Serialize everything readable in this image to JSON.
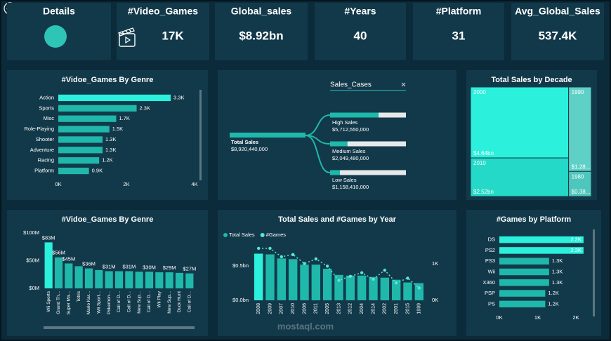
{
  "header": {
    "cards": [
      {
        "title": "Details"
      },
      {
        "title": "#Video_Games",
        "value": "17K"
      },
      {
        "title": "Global_sales",
        "value": "$8.92bn"
      },
      {
        "title": "#Years",
        "value": "40"
      },
      {
        "title": "#Platform",
        "value": "31"
      },
      {
        "title": "Avg_Global_Sales",
        "value": "537.4K"
      }
    ]
  },
  "watermark": "mostaql.com",
  "chart_data": [
    {
      "type": "hbar",
      "title": "#Vidoe_Games By Genre",
      "categories": [
        "Action",
        "Sports",
        "Misc",
        "Role-Playing",
        "Shooter",
        "Adventure",
        "Racing",
        "Platform"
      ],
      "values": [
        3.3,
        2.3,
        1.7,
        1.5,
        1.3,
        1.3,
        1.2,
        0.9
      ],
      "value_labels": [
        "3.3K",
        "2.3K",
        "1.7K",
        "1.5K",
        "1.3K",
        "1.3K",
        "1.2K",
        "0.9K"
      ],
      "colors": [
        "#2af0dc",
        "#1fb8aa",
        "#1fb8aa",
        "#1fb8aa",
        "#1fb8aa",
        "#1fb8aa",
        "#1fb8aa",
        "#1fb8aa"
      ],
      "xlim": [
        0,
        4
      ],
      "xticks": [
        {
          "value": 0,
          "label": "0K"
        },
        {
          "value": 2,
          "label": "2K"
        },
        {
          "value": 4,
          "label": "4K"
        }
      ]
    },
    {
      "type": "decomposition",
      "title": "Sales_Cases",
      "root": {
        "name": "Total Sales",
        "value": 8920440000,
        "value_label": "$8,920,440,000"
      },
      "categories": [
        "High Sales",
        "Medium Sales",
        "Low Sales"
      ],
      "values": [
        5712550000,
        2049480000,
        1158410000
      ],
      "value_labels": [
        "$5,712,550,000",
        "$2,049,480,000",
        "$1,158,410,000"
      ],
      "color": "#1fb8aa"
    },
    {
      "type": "treemap",
      "title": "Total Sales by Decade",
      "categories": [
        "2000",
        "2010",
        "1990",
        "1980"
      ],
      "values": [
        4.64,
        2.52,
        1.28,
        0.38
      ],
      "value_labels": [
        "$4.64bn",
        "$2.52bn",
        "$1.28...",
        "$0.38..."
      ],
      "colors": [
        "#2af0dc",
        "#24d9c7",
        "#5fd0c6",
        "#4fc6bb"
      ]
    },
    {
      "type": "bar",
      "title": "#Vidoe_Games By Genre",
      "categories": [
        "Wii Sports",
        "Grand Th...",
        "Super Ma...",
        "Tetris",
        "Mario Kar...",
        "Wii Sport...",
        "Pokemon...",
        "Call of D...",
        "Call of D...",
        "New Sup...",
        "Call of D...",
        "Wii Play",
        "New Sup...",
        "Duck Hunt",
        "Call of D..."
      ],
      "values": [
        83,
        56,
        45,
        40,
        36,
        33,
        31,
        31,
        31,
        30,
        30,
        29,
        29,
        28,
        27
      ],
      "value_labels": [
        "$83M",
        "$56M",
        "$45M",
        null,
        "$36M",
        null,
        "$31M",
        null,
        "$31M",
        null,
        "$30M",
        null,
        "$29M",
        null,
        "$27M"
      ],
      "colors": [
        "#2af0dc",
        "#1fb8aa",
        "#1fb8aa",
        "#1fb8aa",
        "#1fb8aa",
        "#1fb8aa",
        "#1fb8aa",
        "#1fb8aa",
        "#1fb8aa",
        "#1fb8aa",
        "#1fb8aa",
        "#1fb8aa",
        "#1fb8aa",
        "#1fb8aa",
        "#1fb8aa"
      ],
      "ylim": [
        0,
        100
      ],
      "yticks": [
        {
          "value": 0,
          "label": "$0M"
        },
        {
          "value": 50,
          "label": "$50M"
        },
        {
          "value": 100,
          "label": "$100M"
        }
      ]
    },
    {
      "type": "combo",
      "title": "Total Sales and #Games by Year",
      "categories": [
        "2008",
        "2009",
        "2007",
        "2010",
        "2006",
        "2011",
        "2005",
        "2013",
        "2012",
        "2004",
        "2014",
        "2002",
        "2001",
        "2015",
        "1999"
      ],
      "series": [
        {
          "name": "Total Sales",
          "color": "#1fb8aa",
          "values": [
            0.68,
            0.67,
            0.61,
            0.6,
            0.52,
            0.52,
            0.46,
            0.37,
            0.36,
            0.36,
            0.34,
            0.33,
            0.3,
            0.26,
            0.25
          ]
        },
        {
          "name": "#Games",
          "color": "#5fe3d6",
          "axis": "y2",
          "values": [
            1.43,
            1.43,
            1.2,
            1.26,
            1.01,
            1.14,
            0.94,
            0.55,
            0.66,
            0.76,
            0.58,
            0.83,
            0.48,
            0.61,
            0.34
          ]
        }
      ],
      "ylim": [
        0,
        0.9
      ],
      "yticks": [
        {
          "value": 0,
          "label": "$0.0bn"
        },
        {
          "value": 0.5,
          "label": "$0.5bn"
        }
      ],
      "y2lim": [
        0,
        1.7
      ],
      "y2ticks": [
        {
          "value": 0,
          "label": "0K"
        },
        {
          "value": 1,
          "label": "1K"
        }
      ]
    },
    {
      "type": "hbar",
      "title": "#Games by Platform",
      "categories": [
        "DS",
        "PS2",
        "PS3",
        "Wii",
        "X360",
        "PSP",
        "PS"
      ],
      "values": [
        2.2,
        2.2,
        1.3,
        1.3,
        1.3,
        1.2,
        1.2
      ],
      "value_labels": [
        "2.2K",
        "2.2K",
        "1.3K",
        "1.3K",
        "1.3K",
        "1.2K",
        "1.2K"
      ],
      "colors": [
        "#2af0dc",
        "#2af0dc",
        "#1fb8aa",
        "#1fb8aa",
        "#1fb8aa",
        "#1fb8aa",
        "#1fb8aa"
      ],
      "xlim": [
        0,
        2
      ],
      "xticks": [
        {
          "value": 0,
          "label": "0K"
        },
        {
          "value": 1,
          "label": "1K"
        },
        {
          "value": 2,
          "label": "2K"
        }
      ]
    }
  ]
}
